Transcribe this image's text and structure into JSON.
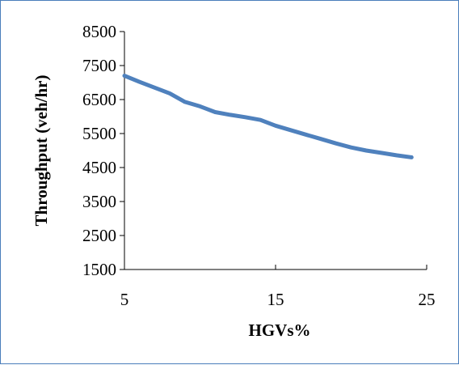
{
  "chart_data": {
    "type": "line",
    "title": "",
    "xlabel": "HGVs%",
    "ylabel": "Throughput (veh/hr)",
    "xlim": [
      5,
      25
    ],
    "ylim": [
      1500,
      8500
    ],
    "x_ticks": [
      5,
      15,
      25
    ],
    "y_ticks": [
      1500,
      2500,
      3500,
      4500,
      5500,
      6500,
      7500,
      8500
    ],
    "x_tick_labels": [
      "5",
      "15",
      "25"
    ],
    "y_tick_labels": [
      "1500",
      "2500",
      "3500",
      "4500",
      "5500",
      "6500",
      "7500",
      "8500"
    ],
    "grid": false,
    "legend": false,
    "series": [
      {
        "color": "#4f81bd",
        "x": [
          5,
          6,
          7,
          8,
          9,
          10,
          11,
          12,
          13,
          14,
          15,
          16,
          17,
          18,
          19,
          20,
          21,
          22,
          23,
          24
        ],
        "y": [
          7200,
          7020,
          6850,
          6680,
          6430,
          6300,
          6130,
          6050,
          5980,
          5900,
          5730,
          5600,
          5470,
          5340,
          5210,
          5090,
          5000,
          4930,
          4860,
          4800
        ]
      }
    ]
  }
}
